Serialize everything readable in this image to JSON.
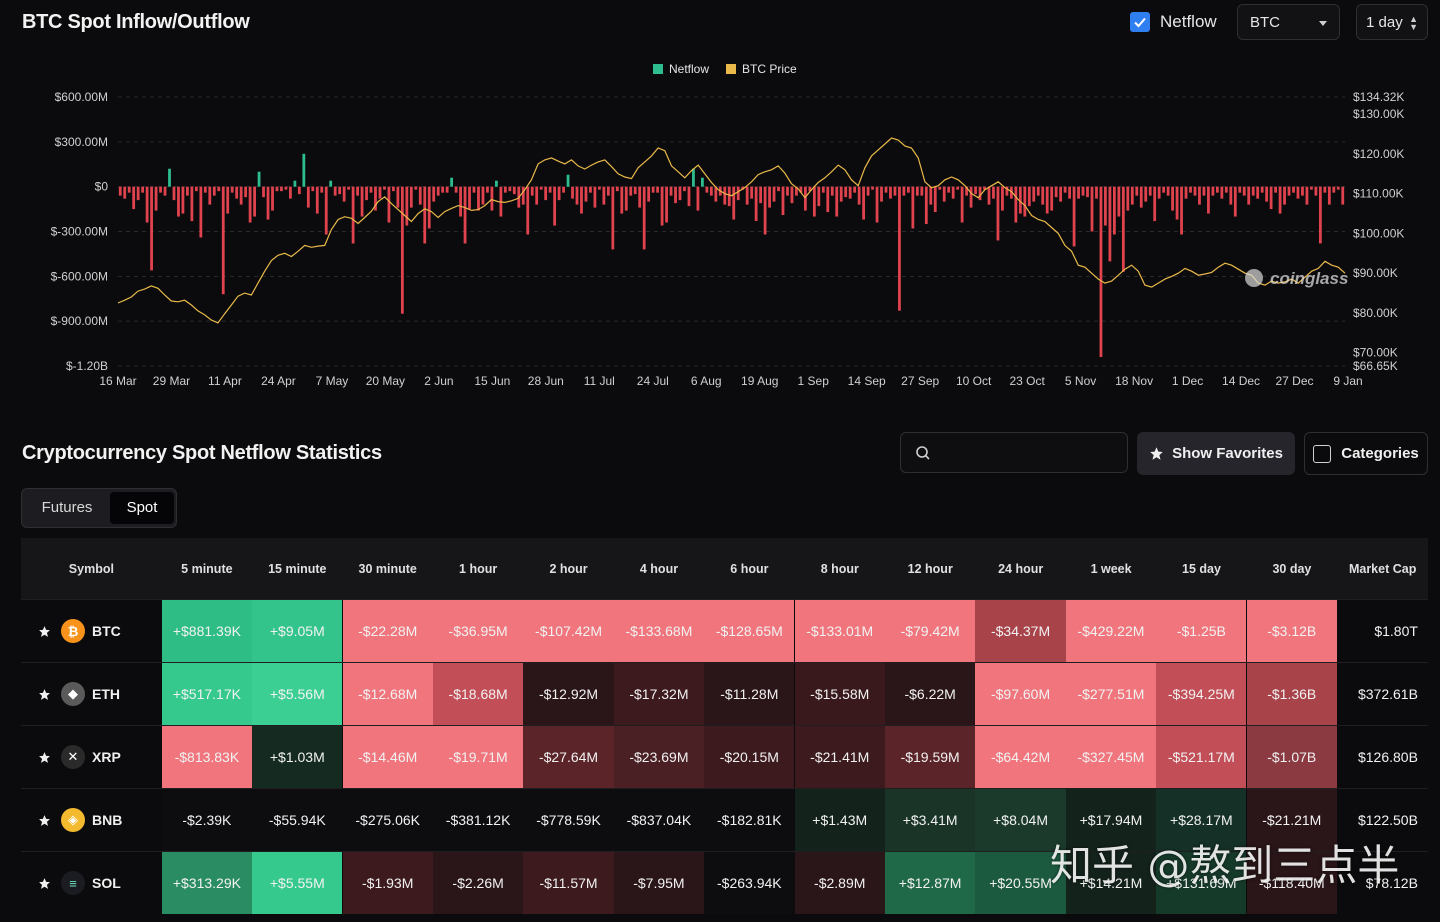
{
  "header": {
    "title": "BTC Spot Inflow/Outflow",
    "netflow_label": "Netflow",
    "netflow_checked": true,
    "coin_select": "BTC",
    "period_select": "1 day"
  },
  "chart_data": {
    "type": "bar",
    "legend": [
      {
        "name": "Netflow",
        "color": "#2dbd8f"
      },
      {
        "name": "BTC Price",
        "color": "#e9b949"
      }
    ],
    "legend_position": "top-center",
    "x_ticks": [
      "16 Mar",
      "29 Mar",
      "11 Apr",
      "24 Apr",
      "7 May",
      "20 May",
      "2 Jun",
      "15 Jun",
      "28 Jun",
      "11 Jul",
      "24 Jul",
      "6 Aug",
      "19 Aug",
      "1 Sep",
      "14 Sep",
      "27 Sep",
      "10 Oct",
      "23 Oct",
      "5 Nov",
      "18 Nov",
      "1 Dec",
      "14 Dec",
      "27 Dec",
      "9 Jan"
    ],
    "y_left_ticks": [
      "$600.00M",
      "$300.00M",
      "$0",
      "$-300.00M",
      "$-600.00M",
      "$-900.00M",
      "$-1.20B"
    ],
    "y_left_range": [
      -1200,
      600
    ],
    "y_left_unit": "M USD",
    "y_right_ticks": [
      "$134.32K",
      "$130.00K",
      "$120.00K",
      "$110.00K",
      "$100.00K",
      "$90.00K",
      "$80.00K",
      "$70.00K",
      "$66.65K"
    ],
    "y_right_range": [
      66.65,
      134.32
    ],
    "y_right_unit": "K USD",
    "grid": true,
    "series": [
      {
        "name": "Netflow",
        "positive_color": "#2dbd8f",
        "negative_color": "#e0434e",
        "values": [
          -60,
          -80,
          -40,
          -150,
          -90,
          -40,
          -240,
          -560,
          -160,
          -40,
          -60,
          120,
          -90,
          -200,
          -180,
          -60,
          -230,
          -30,
          -340,
          -40,
          -120,
          -60,
          -30,
          -720,
          -180,
          -40,
          -80,
          -120,
          -70,
          -240,
          -200,
          100,
          -70,
          -220,
          -160,
          -30,
          -30,
          -20,
          -80,
          40,
          -50,
          220,
          -140,
          -30,
          -180,
          -40,
          -320,
          40,
          -60,
          -50,
          -100,
          -20,
          -380,
          -60,
          -200,
          -90,
          -40,
          -160,
          -80,
          -20,
          -240,
          -30,
          -140,
          -850,
          -260,
          -140,
          -20,
          -120,
          -380,
          -280,
          -100,
          -60,
          -40,
          -40,
          60,
          -40,
          -200,
          -380,
          -150,
          -40,
          -160,
          -120,
          -40,
          -160,
          40,
          -200,
          -40,
          -30,
          -50,
          -140,
          -120,
          -320,
          -60,
          -120,
          -20,
          -90,
          -40,
          -260,
          -90,
          -40,
          80,
          -80,
          -120,
          -180,
          -100,
          -40,
          -140,
          -20,
          -120,
          -60,
          -420,
          -30,
          -180,
          -160,
          -60,
          -50,
          -140,
          -420,
          -100,
          -40,
          -40,
          -260,
          -240,
          -60,
          -110,
          -90,
          -30,
          -130,
          120,
          -160,
          60,
          -40,
          -60,
          -100,
          -60,
          -120,
          -130,
          -220,
          -90,
          -20,
          -120,
          -80,
          -230,
          -110,
          -320,
          -140,
          -100,
          -30,
          -190,
          -60,
          -110,
          -60,
          -40,
          -160,
          -30,
          -200,
          -130,
          -40,
          -170,
          -60,
          -200,
          -100,
          -70,
          -80,
          -40,
          -120,
          -220,
          -60,
          -20,
          -240,
          -100,
          -40,
          -80,
          -60,
          -830,
          -60,
          -40,
          -280,
          -60,
          -60,
          -250,
          -120,
          -170,
          -20,
          -100,
          -40,
          -80,
          -20,
          -240,
          -60,
          -140,
          -50,
          -90,
          -20,
          -120,
          -80,
          -360,
          -160,
          -60,
          -80,
          -240,
          -180,
          -200,
          -130,
          -100,
          -60,
          -120,
          -180,
          -160,
          -70,
          -100,
          -40,
          -80,
          -400,
          -80,
          -60,
          -70,
          -300,
          -80,
          -1140,
          -260,
          -500,
          -320,
          -200,
          -570,
          -160,
          -120,
          -60,
          -140,
          -100,
          -60,
          -230,
          -80,
          -40,
          -60,
          -160,
          -220,
          -320,
          -80,
          -40,
          -60,
          -120,
          -60,
          -180,
          -60,
          -40,
          -80,
          -40,
          -120,
          -200,
          -40,
          -60,
          -120,
          -60,
          -80,
          -40,
          -100,
          -150,
          -40,
          -180,
          -120,
          -60,
          -40,
          -80,
          -60,
          -120,
          -20,
          -60,
          -380,
          -40,
          -120,
          -40,
          -20,
          -120
        ],
        "values_note_skip": false
      },
      {
        "name": "BTC Price",
        "color": "#e9b949",
        "values": [
          82.5,
          83.2,
          84.0,
          85.5,
          86.0,
          86.8,
          86.2,
          84.5,
          83.0,
          82.8,
          83.2,
          82.0,
          80.5,
          79.5,
          78.2,
          77.5,
          79.8,
          82.0,
          84.2,
          85.0,
          84.5,
          87.5,
          90.5,
          93.2,
          94.5,
          95.0,
          94.2,
          95.5,
          97.0,
          96.5,
          96.8,
          97.0,
          101.0,
          103.5,
          104.2,
          103.8,
          102.5,
          104.0,
          105.6,
          108.0,
          109.2,
          107.5,
          106.0,
          104.5,
          103.0,
          105.0,
          106.2,
          105.5,
          104.0,
          105.5,
          106.3,
          107.0,
          106.5,
          105.8,
          106.0,
          107.0,
          108.5,
          108.0,
          107.8,
          108.2,
          108.8,
          111.0,
          113.5,
          117.5,
          118.5,
          119.0,
          118.2,
          117.5,
          118.5,
          117.0,
          116.2,
          117.2,
          118.0,
          118.5,
          116.8,
          115.0,
          114.2,
          113.8,
          116.5,
          118.0,
          119.5,
          121.5,
          120.8,
          117.0,
          115.5,
          114.0,
          115.8,
          117.2,
          115.0,
          112.8,
          111.0,
          110.0,
          109.5,
          110.5,
          111.5,
          113.0,
          114.8,
          115.5,
          116.0,
          117.0,
          115.2,
          112.5,
          111.2,
          109.0,
          111.0,
          112.8,
          114.0,
          115.5,
          117.2,
          116.0,
          113.5,
          112.0,
          116.5,
          119.5,
          121.0,
          122.5,
          124.0,
          123.5,
          122.0,
          121.5,
          119.0,
          113.0,
          111.5,
          112.0,
          113.5,
          114.2,
          113.5,
          112.0,
          110.0,
          109.0,
          111.0,
          112.0,
          113.0,
          111.5,
          110.5,
          108.5,
          107.0,
          104.5,
          103.5,
          103.0,
          101.5,
          100.0,
          97.0,
          95.5,
          92.0,
          91.5,
          90.0,
          88.5,
          87.5,
          88.0,
          89.5,
          91.0,
          92.0,
          90.5,
          87.0,
          86.5,
          87.5,
          88.5,
          89.2,
          90.0,
          91.2,
          90.5,
          89.5,
          89.8,
          90.2,
          91.5,
          92.5,
          92.0,
          91.0,
          90.0,
          89.5,
          87.5,
          87.0,
          88.0,
          87.5,
          87.8,
          88.5,
          87.5,
          89.0,
          90.5,
          91.2,
          93.0,
          92.0,
          91.5,
          90.0
        ]
      }
    ]
  },
  "stats": {
    "title": "Cryptocurrency Spot Netflow Statistics",
    "search_placeholder": "",
    "show_favorites_label": "Show Favorites",
    "categories_label": "Categories",
    "tabs": [
      "Futures",
      "Spot"
    ],
    "active_tab": "Spot",
    "columns": [
      "Symbol",
      "5 minute",
      "15 minute",
      "30 minute",
      "1 hour",
      "2 hour",
      "4 hour",
      "6 hour",
      "8 hour",
      "12 hour",
      "24 hour",
      "1 week",
      "15 day",
      "30 day",
      "Market Cap"
    ],
    "rows": [
      {
        "symbol": "BTC",
        "icon": "bitcoin-icon",
        "icon_color": "#f7931a",
        "values": [
          "+$881.39K",
          "+$9.05M",
          "-$22.28M",
          "-$36.95M",
          "-$107.42M",
          "-$133.68M",
          "-$128.65M",
          "-$133.01M",
          "-$79.42M",
          "-$34.37M",
          "-$429.22M",
          "-$1.25B",
          "-$3.12B"
        ],
        "market_cap": "$1.80T"
      },
      {
        "symbol": "ETH",
        "icon": "ethereum-icon",
        "icon_color": "#5a5a5a",
        "values": [
          "+$517.17K",
          "+$5.56M",
          "-$12.68M",
          "-$18.68M",
          "-$12.92M",
          "-$17.32M",
          "-$11.28M",
          "-$15.58M",
          "-$6.22M",
          "-$97.60M",
          "-$277.51M",
          "-$394.25M",
          "-$1.36B"
        ],
        "market_cap": "$372.61B"
      },
      {
        "symbol": "XRP",
        "icon": "xrp-icon",
        "icon_color": "#2a2a2a",
        "values": [
          "-$813.83K",
          "+$1.03M",
          "-$14.46M",
          "-$19.71M",
          "-$27.64M",
          "-$23.69M",
          "-$20.15M",
          "-$21.41M",
          "-$19.59M",
          "-$64.42M",
          "-$327.45M",
          "-$521.17M",
          "-$1.07B"
        ],
        "market_cap": "$126.80B"
      },
      {
        "symbol": "BNB",
        "icon": "bnb-icon",
        "icon_color": "#f3ba2f",
        "values": [
          "-$2.39K",
          "-$55.94K",
          "-$275.06K",
          "-$381.12K",
          "-$778.59K",
          "-$837.04K",
          "-$182.81K",
          "+$1.43M",
          "+$3.41M",
          "+$8.04M",
          "+$17.94M",
          "+$28.17M",
          "-$21.21M"
        ],
        "market_cap": "$122.50B"
      },
      {
        "symbol": "SOL",
        "icon": "solana-icon",
        "icon_color": "#1b1b22",
        "values": [
          "+$313.29K",
          "+$5.55M",
          "-$1.93M",
          "-$2.26M",
          "-$11.57M",
          "-$7.95M",
          "-$263.94K",
          "-$2.89M",
          "+$12.87M",
          "+$20.55M",
          "+$14.21M",
          "+$131.69M",
          "-$118.40M"
        ],
        "market_cap": "$78.12B"
      }
    ],
    "cell_colors": [
      [
        "#2ebd85",
        "#33c48c",
        "#f0757d",
        "#f0757d",
        "#f0757d",
        "#f0757d",
        "#f0757d",
        "#f0757d",
        "#f0757d",
        "#a8434a",
        "#f0757d",
        "#f0757d",
        "#f0757d"
      ],
      [
        "#35c98e",
        "#3ccf94",
        "#f0757d",
        "#c24f57",
        "#2a1518",
        "#3c1a1e",
        "#2a1518",
        "#3a191d",
        "#2a1518",
        "#f0757d",
        "#f0757d",
        "#c24f57",
        "#a8434a"
      ],
      [
        "#f0757d",
        "#152a21",
        "#f0757d",
        "#f0757d",
        "#5a2428",
        "#4a2024",
        "#3c1a1e",
        "#3c1a1e",
        "#5a2428",
        "#f0757d",
        "#f0757d",
        "#c24f57",
        "#8a3a40"
      ],
      [
        "#0d0d10",
        "#0d0d10",
        "#0d0d10",
        "#0d0d10",
        "#0d0d10",
        "#0d0d10",
        "#0d0d10",
        "#14221c",
        "#1a3428",
        "#1b3a2c",
        "#14221c",
        "#153026",
        "#2a1518"
      ],
      [
        "#2a8c62",
        "#35c98e",
        "#3c1a1e",
        "#2a1518",
        "#3c1a1e",
        "#2a1518",
        "#0d0d10",
        "#2a1518",
        "#1f6848",
        "#1c5a40",
        "#14221c",
        "#163a2a",
        "#2a1518"
      ]
    ]
  },
  "watermark": {
    "chart_logo_text": "coinglass",
    "overlay_text": "知乎 @熬到三点半"
  }
}
